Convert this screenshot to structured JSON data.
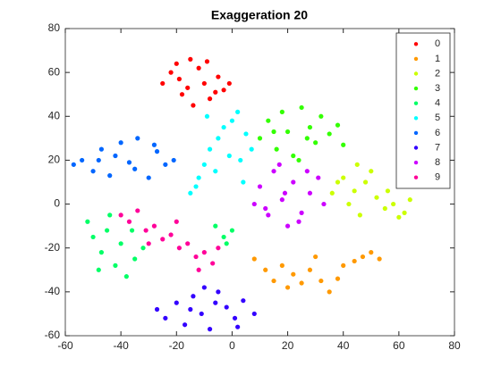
{
  "chart_data": {
    "type": "scatter",
    "title": "Exaggeration 20",
    "xlim": [
      -60,
      80
    ],
    "ylim": [
      -60,
      80
    ],
    "xticks": [
      -60,
      -40,
      -20,
      0,
      20,
      40,
      60,
      80
    ],
    "yticks": [
      -60,
      -40,
      -20,
      0,
      20,
      40,
      60,
      80
    ],
    "grid": false,
    "legend": "northeast",
    "series": [
      {
        "name": "0",
        "color": "#ff0000",
        "x": [
          -25,
          -22,
          -20,
          -18,
          -15,
          -12,
          -10,
          -8,
          -5,
          -3,
          -1,
          -14,
          -19,
          -9,
          -6,
          -16
        ],
        "values": [
          55,
          60,
          64,
          50,
          66,
          62,
          55,
          48,
          58,
          52,
          55,
          45,
          57,
          65,
          51,
          53
        ]
      },
      {
        "name": "1",
        "color": "#ff9900",
        "x": [
          8,
          12,
          15,
          18,
          22,
          25,
          28,
          32,
          35,
          38,
          40,
          44,
          47,
          50,
          53,
          30,
          20
        ],
        "values": [
          -25,
          -30,
          -35,
          -28,
          -32,
          -36,
          -30,
          -35,
          -40,
          -34,
          -28,
          -26,
          -24,
          -22,
          -25,
          -24,
          -38
        ]
      },
      {
        "name": "2",
        "color": "#ccff00",
        "x": [
          36,
          40,
          42,
          45,
          48,
          50,
          52,
          55,
          58,
          60,
          62,
          64,
          46,
          44,
          38,
          56
        ],
        "values": [
          5,
          12,
          0,
          18,
          10,
          15,
          3,
          -2,
          0,
          -6,
          -4,
          2,
          -5,
          6,
          10,
          6
        ]
      },
      {
        "name": "3",
        "color": "#33ff00",
        "x": [
          10,
          13,
          16,
          18,
          20,
          22,
          25,
          28,
          30,
          32,
          35,
          38,
          40,
          24,
          15,
          27
        ],
        "values": [
          30,
          38,
          25,
          42,
          33,
          22,
          44,
          35,
          28,
          40,
          32,
          36,
          27,
          20,
          33,
          30
        ]
      },
      {
        "name": "4",
        "color": "#00ff66",
        "x": [
          -52,
          -50,
          -47,
          -45,
          -42,
          -40,
          -38,
          -35,
          -32,
          -44,
          -48,
          -36,
          -6,
          -3,
          0,
          -2
        ],
        "values": [
          -8,
          -15,
          -22,
          -12,
          -28,
          -18,
          -33,
          -25,
          -20,
          -5,
          -30,
          -12,
          -10,
          -15,
          -12,
          -18
        ]
      },
      {
        "name": "5",
        "color": "#00ffff",
        "x": [
          -15,
          -12,
          -10,
          -8,
          -5,
          -3,
          0,
          2,
          5,
          7,
          -6,
          -1,
          3,
          -13,
          -9,
          4
        ],
        "values": [
          5,
          12,
          18,
          25,
          30,
          35,
          38,
          42,
          32,
          25,
          15,
          22,
          20,
          8,
          40,
          10
        ]
      },
      {
        "name": "6",
        "color": "#0066ff",
        "x": [
          -57,
          -54,
          -50,
          -47,
          -44,
          -40,
          -37,
          -34,
          -30,
          -27,
          -24,
          -21,
          -42,
          -35,
          -48,
          -28
        ],
        "values": [
          18,
          20,
          15,
          25,
          13,
          28,
          19,
          30,
          12,
          24,
          18,
          20,
          22,
          16,
          20,
          27
        ]
      },
      {
        "name": "7",
        "color": "#3300ff",
        "x": [
          -27,
          -24,
          -20,
          -17,
          -14,
          -11,
          -8,
          -5,
          -2,
          1,
          4,
          8,
          -10,
          -15,
          -6,
          2
        ],
        "values": [
          -48,
          -52,
          -45,
          -55,
          -42,
          -50,
          -57,
          -40,
          -47,
          -52,
          -44,
          -50,
          -38,
          -48,
          -45,
          -56
        ]
      },
      {
        "name": "8",
        "color": "#cc00ff",
        "x": [
          8,
          10,
          13,
          15,
          18,
          20,
          22,
          25,
          28,
          31,
          33,
          17,
          24,
          12,
          27,
          19
        ],
        "values": [
          0,
          8,
          -5,
          15,
          2,
          -10,
          10,
          -4,
          5,
          12,
          0,
          18,
          -8,
          -2,
          15,
          5
        ]
      },
      {
        "name": "9",
        "color": "#ff0099",
        "x": [
          -40,
          -37,
          -34,
          -31,
          -28,
          -25,
          -22,
          -19,
          -16,
          -13,
          -10,
          -7,
          -5,
          -30,
          -20,
          -12
        ],
        "values": [
          -5,
          -8,
          -3,
          -12,
          -10,
          -16,
          -14,
          -20,
          -18,
          -24,
          -22,
          -27,
          -20,
          -18,
          -8,
          -30
        ]
      }
    ]
  }
}
